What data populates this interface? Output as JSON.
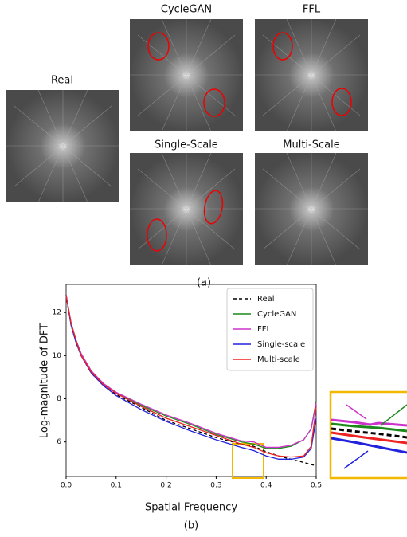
{
  "panel_a": {
    "labels": [
      "Real",
      "CycleGAN",
      "FFL",
      "Single-Scale",
      "Multi-Scale"
    ],
    "caption": "(a)"
  },
  "chart_data": {
    "type": "line",
    "caption": "(b)",
    "x_label": "Spatial Frequency",
    "y_label": "Log-magnitude of DFT",
    "x": [
      0,
      0.01,
      0.02,
      0.03,
      0.05,
      0.075,
      0.1,
      0.15,
      0.2,
      0.25,
      0.3,
      0.35,
      0.375,
      0.4,
      0.425,
      0.45,
      0.475,
      0.49,
      0.5
    ],
    "series": [
      {
        "name": "Real",
        "color": "#000000",
        "dash": true,
        "values": [
          12.8,
          11.4,
          10.6,
          10.0,
          9.2,
          8.6,
          8.2,
          7.6,
          7.0,
          6.6,
          6.2,
          5.9,
          5.8,
          5.55,
          5.35,
          5.2,
          5.05,
          4.95,
          4.9
        ]
      },
      {
        "name": "CycleGAN",
        "color": "#1a8a1a",
        "values": [
          12.8,
          11.5,
          10.7,
          10.1,
          9.3,
          8.7,
          8.3,
          7.7,
          7.2,
          6.8,
          6.35,
          6.0,
          5.9,
          5.7,
          5.7,
          5.8,
          6.1,
          6.6,
          7.9
        ]
      },
      {
        "name": "FFL",
        "color": "#cc33cc",
        "values": [
          12.8,
          11.5,
          10.7,
          10.1,
          9.3,
          8.7,
          8.3,
          7.75,
          7.25,
          6.85,
          6.4,
          6.05,
          6.0,
          5.75,
          5.75,
          5.85,
          6.1,
          6.6,
          7.8
        ]
      },
      {
        "name": "Single-scale",
        "color": "#2222dd",
        "values": [
          12.8,
          11.4,
          10.6,
          10.0,
          9.2,
          8.6,
          8.15,
          7.5,
          6.95,
          6.5,
          6.1,
          5.75,
          5.6,
          5.35,
          5.2,
          5.2,
          5.3,
          5.7,
          7.1
        ]
      },
      {
        "name": "Multi-scale",
        "color": "#ee2222",
        "values": [
          12.8,
          11.5,
          10.7,
          10.0,
          9.25,
          8.65,
          8.25,
          7.65,
          7.1,
          6.7,
          6.3,
          5.9,
          5.75,
          5.5,
          5.35,
          5.3,
          5.35,
          5.8,
          7.6
        ]
      }
    ],
    "xlim": [
      0,
      0.5
    ],
    "xticks": [
      {
        "value": 0,
        "label": "0.0"
      },
      0.1,
      0.2,
      0.3,
      0.4,
      0.5
    ],
    "ylim": [
      4.4,
      13.3
    ],
    "yticks": [
      6,
      8,
      10,
      12
    ],
    "legend": "upper right"
  }
}
